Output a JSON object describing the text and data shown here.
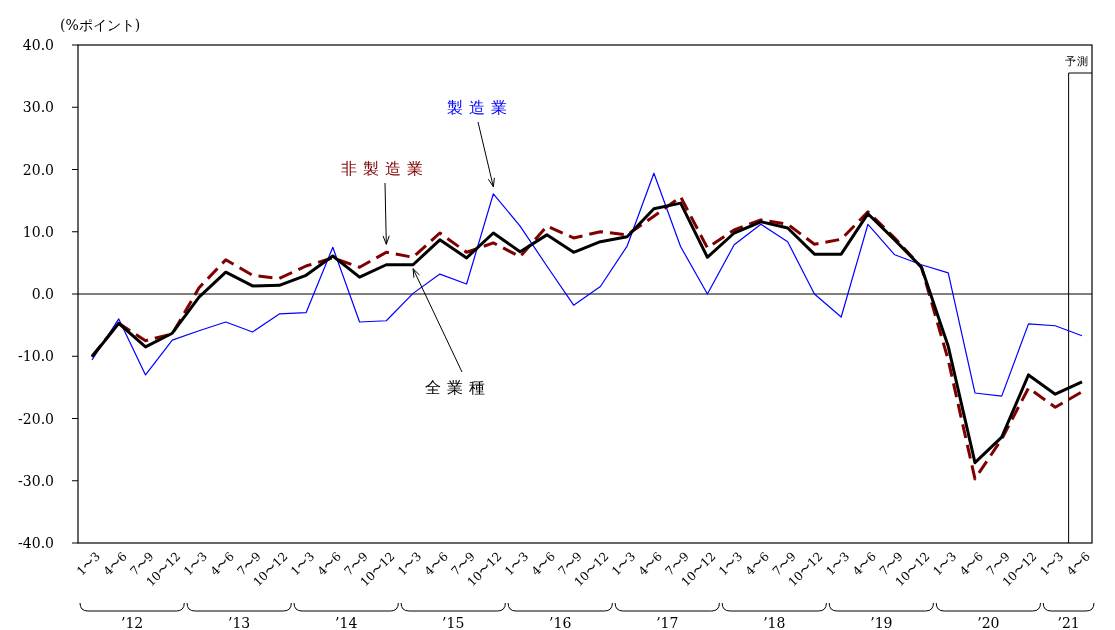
{
  "chart_data": {
    "type": "line",
    "ylabel": "(%ポイント)",
    "categories": [
      "1〜3",
      "4〜6",
      "7〜9",
      "10〜12",
      "1〜3",
      "4〜6",
      "7〜9",
      "10〜12",
      "1〜3",
      "4〜6",
      "7〜9",
      "10〜12",
      "1〜3",
      "4〜6",
      "7〜9",
      "10〜12",
      "1〜3",
      "4〜6",
      "7〜9",
      "10〜12",
      "1〜3",
      "4〜6",
      "7〜9",
      "10〜12",
      "1〜3",
      "4〜6",
      "7〜9",
      "10〜12",
      "1〜3",
      "4〜6",
      "7〜9",
      "10〜12",
      "1〜3",
      "4〜6",
      "7〜9",
      "10〜12",
      "1〜3",
      "4〜6"
    ],
    "series": [
      {
        "name": "製造業",
        "color": "#0000ff",
        "line_style": "solid",
        "values": [
          -10.6,
          -4.0,
          -13.0,
          -7.4,
          -5.9,
          -4.5,
          -6.1,
          -3.2,
          -3.0,
          7.5,
          -4.5,
          -4.3,
          0.1,
          3.2,
          1.6,
          16.1,
          10.9,
          4.5,
          -1.8,
          1.2,
          7.7,
          19.4,
          7.6,
          0.0,
          7.9,
          11.2,
          8.4,
          0.0,
          -3.7,
          11.2,
          6.3,
          4.7,
          3.4,
          -15.9,
          -16.4,
          -4.8,
          -5.1,
          -6.7
        ]
      },
      {
        "name": "非製造業",
        "color": "#800000",
        "line_style": "dashed",
        "values": [
          -10.0,
          -4.7,
          -7.5,
          -6.4,
          1.0,
          5.5,
          3.0,
          2.5,
          4.5,
          5.8,
          4.3,
          6.7,
          5.9,
          9.8,
          6.7,
          8.2,
          6.0,
          10.9,
          9.0,
          10.0,
          9.5,
          12.5,
          15.6,
          7.4,
          10.3,
          11.9,
          11.2,
          8.0,
          8.8,
          13.2,
          9.0,
          4.3,
          -10.6,
          -29.7,
          -23.3,
          -15.1,
          -18.2,
          -15.7
        ]
      },
      {
        "name": "全業種",
        "color": "#000000",
        "line_style": "solid",
        "values": [
          -10.1,
          -4.7,
          -8.5,
          -6.3,
          -0.5,
          3.5,
          1.3,
          1.4,
          3.0,
          6.1,
          2.7,
          4.7,
          4.7,
          8.7,
          5.8,
          9.8,
          6.8,
          9.5,
          6.7,
          8.4,
          9.2,
          13.7,
          14.6,
          5.9,
          9.8,
          11.6,
          10.6,
          6.4,
          6.4,
          12.9,
          8.7,
          4.3,
          -8.4,
          -27.1,
          -23.0,
          -13.0,
          -16.1,
          -14.1
        ]
      }
    ],
    "ylim": [
      -40,
      40
    ],
    "yticks": [
      {
        "value": -40,
        "label": "-40.0"
      },
      {
        "value": -30,
        "label": "-30.0"
      },
      {
        "value": -20,
        "label": "-20.0"
      },
      {
        "value": -10,
        "label": "-10.0"
      },
      {
        "value": 0,
        "label": "0.0"
      },
      {
        "value": 10,
        "label": "10.0"
      },
      {
        "value": 20,
        "label": "20.0"
      },
      {
        "value": 30,
        "label": "30.0"
      },
      {
        "value": 40,
        "label": "40.0"
      }
    ],
    "ref_lines": [
      {
        "axis": "y",
        "value": 0,
        "color": "#000000"
      }
    ],
    "annotations": [
      "’12",
      "’13",
      "’14",
      "’15",
      "’16",
      "’17",
      "’18",
      "’19",
      "’20",
      "’21",
      {
        "text": "予測"
      }
    ],
    "grid": false,
    "marker": "none"
  }
}
